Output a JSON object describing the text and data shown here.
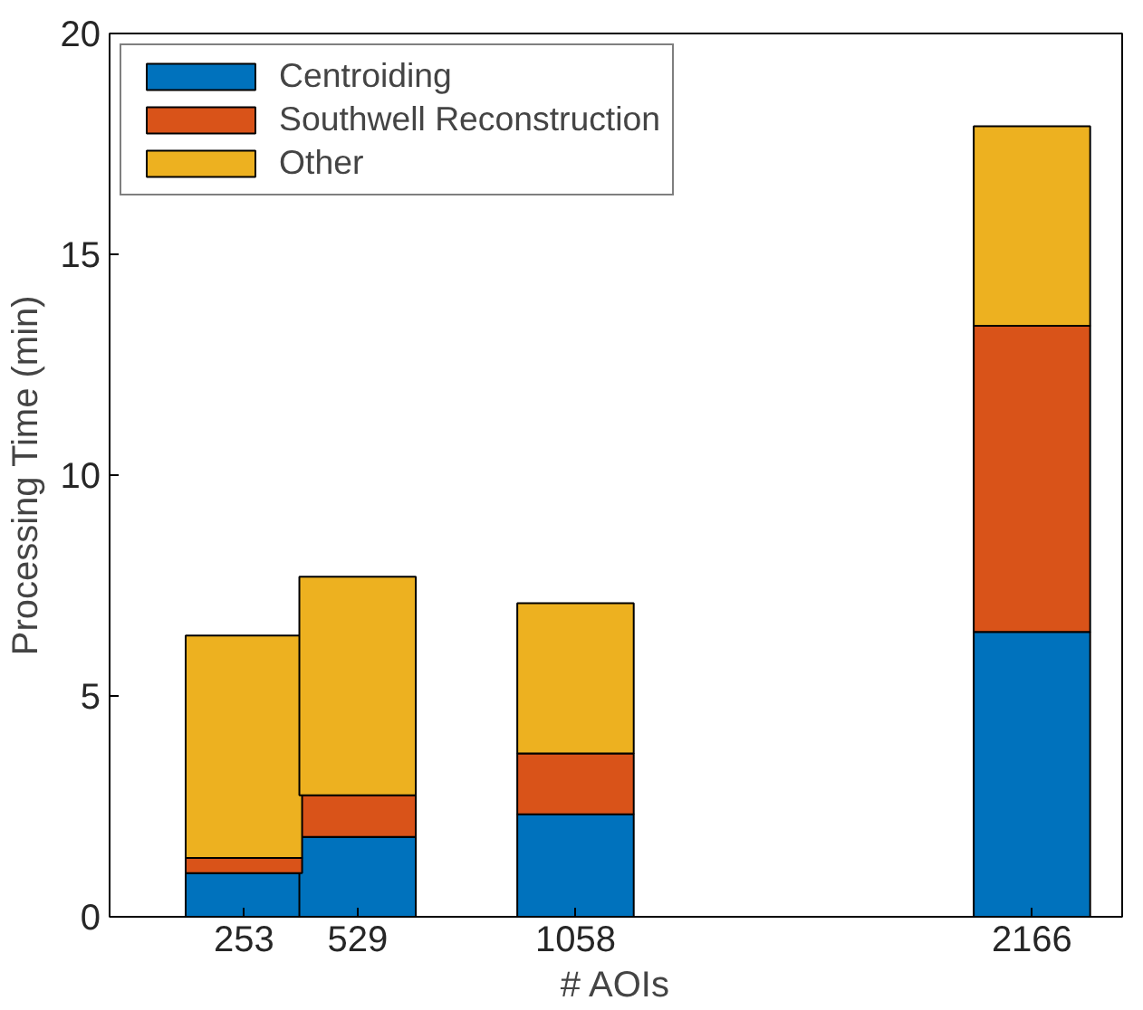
{
  "chart_data": {
    "type": "bar",
    "stacked": true,
    "xlabel": "# AOIs",
    "ylabel": "Processing Time (min)",
    "x": [
      253,
      529,
      1058,
      2166
    ],
    "series": [
      {
        "name": "Centroiding",
        "color": "#0072bd",
        "values": [
          0.99,
          1.81,
          2.32,
          6.45
        ]
      },
      {
        "name": "Southwell Reconstruction",
        "color": "#d95319",
        "values": [
          0.34,
          0.94,
          1.38,
          6.93
        ]
      },
      {
        "name": "Other",
        "color": "#edb120",
        "values": [
          5.04,
          4.95,
          3.4,
          4.52
        ]
      }
    ],
    "xlim": [
      -73,
      2385
    ],
    "xticks": [
      253,
      529,
      1058,
      2166
    ],
    "ylim": [
      0,
      20
    ],
    "yticks": [
      0,
      5,
      10,
      15,
      20
    ],
    "grid": false,
    "legend": "top left"
  }
}
